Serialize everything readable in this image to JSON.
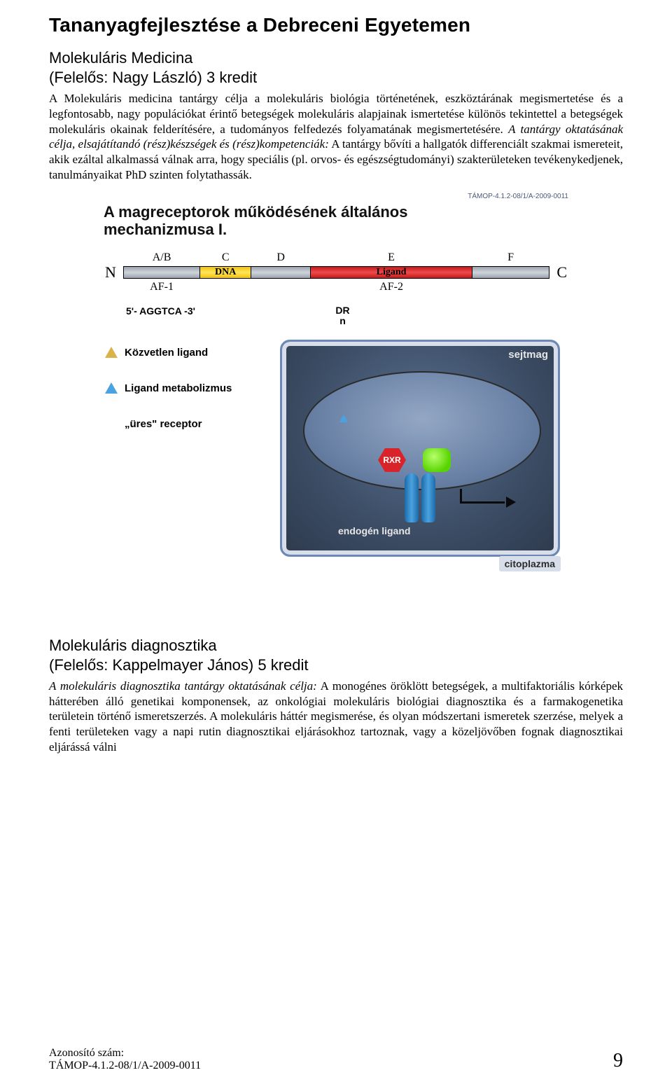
{
  "title": "Tananyagfejlesztése a Debreceni Egyetemen",
  "section1": {
    "heading": "Molekuláris Medicina",
    "responsible": "(Felelős: Nagy László) 3 kredit",
    "para_plain1": "A Molekuláris medicina tantárgy célja a molekuláris biológia történetének, eszköztárának megismertetése és a legfontosabb, nagy populációkat érintő betegségek molekuláris alapjainak ismertetése különös tekintettel a betegségek molekuláris okainak felderítésére, a tudományos felfedezés folyamatának megismertetésére. ",
    "para_ital": "A tantárgy oktatásának célja, elsajátítandó (rész)készségek és (rész)kompetenciák:",
    "para_plain2": " A tantárgy bővíti a hallgatók differenciált szakmai ismereteit, akik ezáltal alkalmassá válnak arra, hogy speciális (pl. orvos- és egészségtudományi) szakterületeken tevékenykedjenek, tanulmányaikat PhD szinten folytathassák."
  },
  "figure": {
    "topnote": "TÁMOP-4.1.2-08/1/A-2009-0011",
    "title_line1": "A magreceptorok működésének általános",
    "title_line2": "mechanizmusa I.",
    "termN": "N",
    "termC": "C",
    "dr": "DR",
    "drn": "n",
    "seq": "5'- AGGTCA -3'",
    "segments": [
      {
        "top": "A/B",
        "bot": "AF-1",
        "color": "linear-gradient(#9aa2ad,#cfd4db,#9aa2ad)",
        "width": 18,
        "inlab": ""
      },
      {
        "top": "C",
        "bot": "",
        "color": "linear-gradient(#f2c20c,#ffe45a,#f2c20c)",
        "width": 12,
        "inlab": "DNA"
      },
      {
        "top": "D",
        "bot": "",
        "color": "linear-gradient(#9aa2ad,#cfd4db,#9aa2ad)",
        "width": 14,
        "inlab": ""
      },
      {
        "top": "E",
        "bot": "AF-2",
        "color": "linear-gradient(#c21a1a,#ef4a4a,#c21a1a)",
        "width": 38,
        "inlab": "Ligand"
      },
      {
        "top": "F",
        "bot": "",
        "color": "linear-gradient(#9aa2ad,#cfd4db,#9aa2ad)",
        "width": 18,
        "inlab": ""
      }
    ],
    "left_items": [
      {
        "label": "Közvetlen ligand",
        "color": "#d9b34a"
      },
      {
        "label": "Ligand metabolizmus",
        "color": "#4aa3e0"
      },
      {
        "label": "„üres\" receptor",
        "color": ""
      }
    ],
    "rxr": "RXR",
    "sejtmag": "sejtmag",
    "endogen": "endogén ligand",
    "citoplazma": "citoplazma"
  },
  "section2": {
    "heading": "Molekuláris diagnosztika",
    "responsible": "(Felelős: Kappelmayer János) 5 kredit",
    "para_ital": "A molekuláris diagnosztika tantárgy oktatásának célja:",
    "para_plain": " A monogénes öröklött betegségek, a multifaktoriális kórképek hátterében álló genetikai komponensek, az onkológiai molekuláris biológiai diagnosztika és a farmakogenetika területein történő ismeretszerzés. A molekuláris háttér megismerése, és olyan módszertani ismeretek szerzése, melyek a fenti területeken vagy a napi rutin diagnosztikai eljárásokhoz tartoznak, vagy a közeljövőben fognak diagnosztikai eljárássá válni"
  },
  "footer": {
    "line1": "Azonosító szám:",
    "line2": "TÁMOP-4.1.2-08/1/A-2009-0011",
    "page": "9"
  },
  "colors": {
    "panel_border": "#6b88b7",
    "panel_bg_inner": "#5a7090",
    "panel_bg_outer": "#2e3a4d",
    "hex": "#d8232a",
    "blob": "#58d400",
    "cyl": "#1e6aa8"
  }
}
